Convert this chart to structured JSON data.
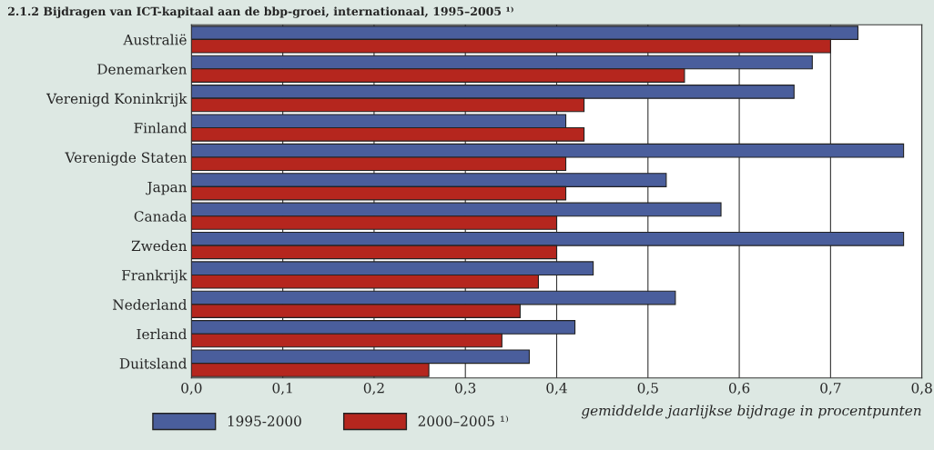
{
  "chart_data": {
    "type": "bar",
    "orientation": "horizontal",
    "title": "2.1.2 Bijdragen van ICT-kapitaal aan de bbp-groei, internationaal, 1995–2005 ¹⁾",
    "xlabel": "gemiddelde jaarlijkse bijdrage in procentpunten",
    "categories": [
      "Australië",
      "Denemarken",
      "Verenigd Koninkrijk",
      "Finland",
      "Verenigde Staten",
      "Japan",
      "Canada",
      "Zweden",
      "Frankrijk",
      "Nederland",
      "Ierland",
      "Duitsland"
    ],
    "series": [
      {
        "name": "1995-2000",
        "color": "#4a5e9c",
        "values": [
          0.73,
          0.68,
          0.66,
          0.41,
          0.78,
          0.52,
          0.58,
          0.78,
          0.44,
          0.53,
          0.42,
          0.37
        ]
      },
      {
        "name": "2000–2005 ¹⁾",
        "color": "#b5261e",
        "values": [
          0.7,
          0.54,
          0.43,
          0.43,
          0.41,
          0.41,
          0.4,
          0.4,
          0.38,
          0.36,
          0.34,
          0.26
        ]
      }
    ],
    "xlim": [
      0,
      0.8
    ],
    "xticks": [
      {
        "value": 0,
        "label": "0,0"
      },
      {
        "value": 0.1,
        "label": "0,1"
      },
      {
        "value": 0.2,
        "label": "0,2"
      },
      {
        "value": 0.3,
        "label": "0,3"
      },
      {
        "value": 0.4,
        "label": "0,4"
      },
      {
        "value": 0.5,
        "label": "0,5"
      },
      {
        "value": 0.6,
        "label": "0,6"
      },
      {
        "value": 0.7,
        "label": "0,7"
      },
      {
        "value": 0.8,
        "label": "0,8"
      }
    ],
    "grid": "x",
    "legend": "bottom left"
  }
}
